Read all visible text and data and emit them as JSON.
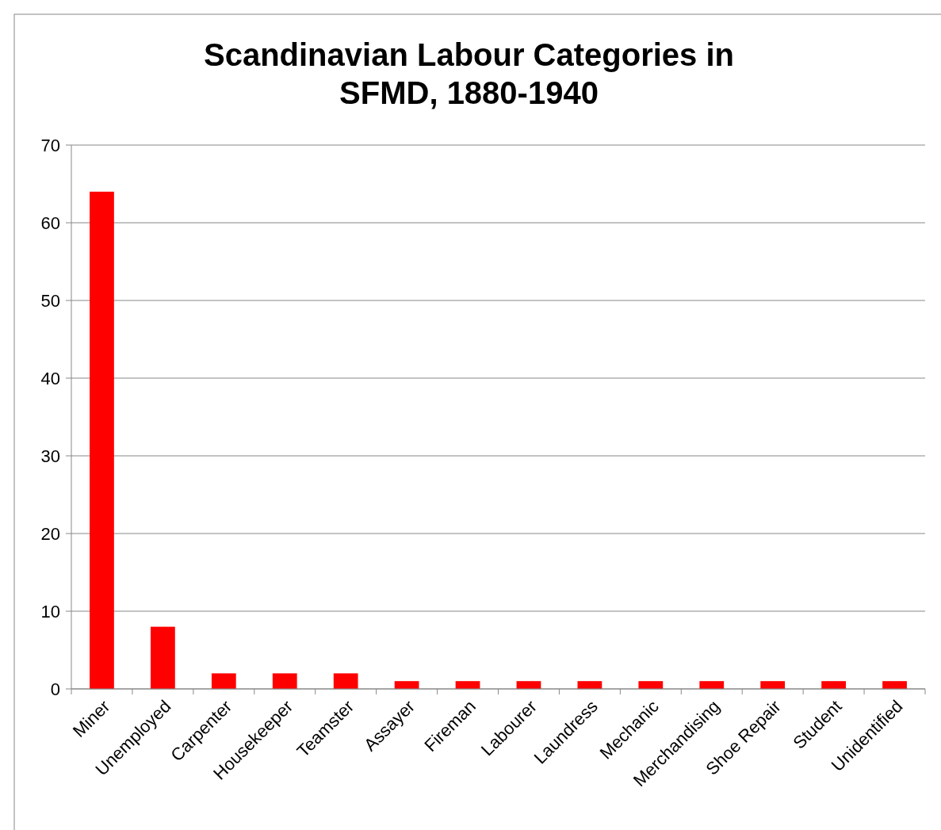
{
  "chart_data": {
    "type": "bar",
    "title": "Scandinavian Labour Categories in SFMD, 1880-1940",
    "categories": [
      "Miner",
      "Unemployed",
      "Carpenter",
      "Housekeeper",
      "Teamster",
      "Assayer",
      "Fireman",
      "Labourer",
      "Laundress",
      "Mechanic",
      "Merchandising",
      "Shoe Repair",
      "Student",
      "Unidentified"
    ],
    "values": [
      64,
      8,
      2,
      2,
      2,
      1,
      1,
      1,
      1,
      1,
      1,
      1,
      1,
      1
    ],
    "color": "#ff0000",
    "ylim": [
      0,
      70
    ],
    "yticks": [
      0,
      10,
      20,
      30,
      40,
      50,
      60,
      70
    ],
    "grid": "y"
  }
}
